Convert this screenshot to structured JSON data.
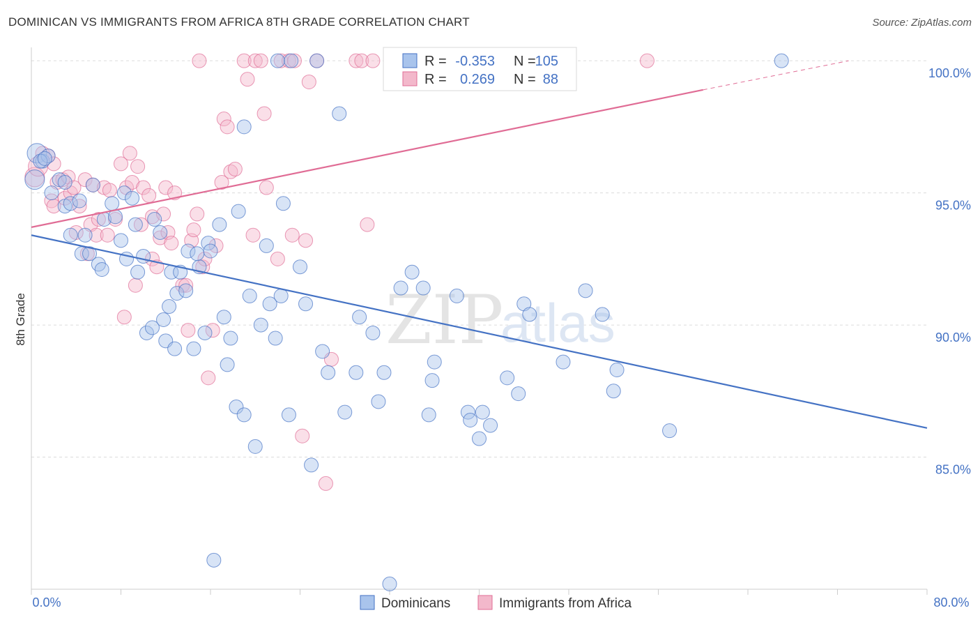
{
  "header": {
    "title": "DOMINICAN VS IMMIGRANTS FROM AFRICA 8TH GRADE CORRELATION CHART",
    "source": "Source: ZipAtlas.com"
  },
  "watermark": {
    "zip": "ZIP",
    "atlas": "atlas"
  },
  "stats_legend": {
    "rows": [
      {
        "r_label": "R =",
        "r_value": "-0.353",
        "n_label": "N =",
        "n_value": "105",
        "color": "#4472c4"
      },
      {
        "r_label": "R =",
        "r_value": "0.269",
        "n_label": "N =",
        "n_value": "88",
        "color": "#e06c95"
      }
    ]
  },
  "chart_data": {
    "type": "scatter",
    "title": "DOMINICAN VS IMMIGRANTS FROM AFRICA 8TH GRADE CORRELATION CHART",
    "xlabel": "",
    "ylabel": "8th Grade",
    "xlim": [
      0,
      80
    ],
    "ylim": [
      80.0,
      100.4
    ],
    "x_tick_labels": [
      "0.0%",
      "80.0%"
    ],
    "y_ticks": [
      85,
      90,
      95,
      100
    ],
    "y_tick_labels": [
      "85.0%",
      "90.0%",
      "95.0%",
      "100.0%"
    ],
    "grid": "horizontal dashed",
    "legend_position": "bottom-center",
    "series": [
      {
        "name": "Dominicans",
        "color": "#4472c4",
        "fill": "#a9c4ec",
        "r": -0.353,
        "n": 105,
        "trend": {
          "x0": 0,
          "y0": 93.4,
          "x1": 80,
          "y1": 86.1
        },
        "points": [
          [
            0.3,
            95.5
          ],
          [
            0.5,
            96.5
          ],
          [
            1.0,
            96.2
          ],
          [
            1.5,
            96.4
          ],
          [
            1.8,
            95.0
          ],
          [
            2.5,
            95.5
          ],
          [
            3.0,
            95.4
          ],
          [
            3.0,
            94.5
          ],
          [
            3.5,
            94.6
          ],
          [
            4.3,
            94.7
          ],
          [
            3.5,
            93.4
          ],
          [
            4.8,
            93.4
          ],
          [
            4.5,
            92.7
          ],
          [
            5.2,
            92.7
          ],
          [
            6.0,
            92.3
          ],
          [
            6.3,
            92.1
          ],
          [
            6.5,
            94.0
          ],
          [
            7.2,
            94.6
          ],
          [
            7.5,
            94.1
          ],
          [
            8.0,
            93.2
          ],
          [
            8.5,
            92.5
          ],
          [
            8.3,
            95.0
          ],
          [
            9.0,
            94.8
          ],
          [
            9.3,
            93.8
          ],
          [
            10.0,
            92.6
          ],
          [
            10.3,
            89.7
          ],
          [
            10.8,
            89.9
          ],
          [
            11.0,
            94.0
          ],
          [
            11.5,
            93.5
          ],
          [
            11.8,
            90.2
          ],
          [
            12.0,
            89.4
          ],
          [
            12.3,
            90.7
          ],
          [
            12.8,
            89.1
          ],
          [
            12.5,
            92.0
          ],
          [
            13.0,
            91.2
          ],
          [
            13.3,
            92.0
          ],
          [
            13.8,
            91.3
          ],
          [
            14.0,
            92.8
          ],
          [
            14.5,
            89.1
          ],
          [
            15.0,
            92.2
          ],
          [
            15.5,
            89.7
          ],
          [
            15.8,
            93.1
          ],
          [
            16.0,
            92.8
          ],
          [
            16.3,
            81.1
          ],
          [
            16.8,
            93.8
          ],
          [
            17.2,
            90.3
          ],
          [
            17.5,
            88.5
          ],
          [
            17.8,
            89.5
          ],
          [
            18.3,
            86.9
          ],
          [
            18.5,
            94.3
          ],
          [
            19.0,
            86.6
          ],
          [
            19.0,
            97.5
          ],
          [
            19.5,
            91.1
          ],
          [
            20.0,
            85.4
          ],
          [
            20.5,
            90.0
          ],
          [
            21.0,
            93.0
          ],
          [
            21.3,
            90.8
          ],
          [
            21.8,
            89.5
          ],
          [
            22.0,
            100.0
          ],
          [
            22.3,
            91.1
          ],
          [
            22.5,
            94.6
          ],
          [
            23.0,
            86.6
          ],
          [
            23.2,
            100.0
          ],
          [
            24.0,
            92.2
          ],
          [
            24.5,
            90.8
          ],
          [
            25.0,
            84.7
          ],
          [
            25.5,
            100.0
          ],
          [
            26.5,
            88.2
          ],
          [
            27.5,
            98.0
          ],
          [
            28.0,
            86.7
          ],
          [
            29.0,
            88.2
          ],
          [
            29.3,
            90.3
          ],
          [
            30.5,
            89.7
          ],
          [
            31.0,
            87.1
          ],
          [
            31.5,
            88.2
          ],
          [
            32.0,
            80.2
          ],
          [
            33.0,
            91.4
          ],
          [
            34.0,
            92.0
          ],
          [
            35.0,
            91.4
          ],
          [
            35.5,
            86.6
          ],
          [
            35.8,
            87.9
          ],
          [
            36.0,
            88.6
          ],
          [
            38.0,
            91.1
          ],
          [
            39.0,
            86.7
          ],
          [
            39.2,
            86.4
          ],
          [
            40.0,
            85.7
          ],
          [
            40.3,
            86.7
          ],
          [
            41.0,
            86.2
          ],
          [
            42.5,
            88.0
          ],
          [
            43.5,
            87.4
          ],
          [
            44.0,
            90.8
          ],
          [
            44.5,
            90.4
          ],
          [
            47.5,
            88.6
          ],
          [
            49.5,
            91.3
          ],
          [
            51.0,
            90.4
          ],
          [
            52.0,
            87.5
          ],
          [
            52.3,
            88.3
          ],
          [
            57.0,
            86.0
          ],
          [
            67.0,
            100.0
          ],
          [
            0.8,
            96.2
          ],
          [
            1.2,
            96.3
          ],
          [
            5.5,
            95.3
          ],
          [
            9.5,
            92.0
          ],
          [
            14.8,
            92.7
          ],
          [
            26.0,
            89.0
          ]
        ]
      },
      {
        "name": "Immigrants from Africa",
        "color": "#e06c95",
        "fill": "#f3b8cb",
        "r": 0.269,
        "n": 88,
        "trend": {
          "x0": 0,
          "y0": 93.7,
          "x1": 60,
          "y1": 98.9,
          "dash_to": {
            "x": 73,
            "y": 100.0
          }
        },
        "points": [
          [
            0.3,
            95.6
          ],
          [
            0.6,
            96.0
          ],
          [
            1.0,
            96.5
          ],
          [
            1.5,
            96.4
          ],
          [
            1.8,
            94.7
          ],
          [
            2.0,
            96.1
          ],
          [
            2.0,
            94.5
          ],
          [
            2.3,
            95.4
          ],
          [
            2.8,
            95.5
          ],
          [
            3.3,
            95.6
          ],
          [
            3.0,
            94.8
          ],
          [
            3.5,
            95.0
          ],
          [
            3.8,
            95.2
          ],
          [
            4.0,
            93.5
          ],
          [
            4.3,
            94.5
          ],
          [
            4.8,
            95.5
          ],
          [
            5.0,
            92.7
          ],
          [
            5.3,
            93.8
          ],
          [
            5.5,
            95.3
          ],
          [
            5.8,
            93.4
          ],
          [
            6.0,
            94.0
          ],
          [
            6.5,
            95.2
          ],
          [
            6.8,
            93.4
          ],
          [
            7.0,
            95.1
          ],
          [
            7.5,
            94.0
          ],
          [
            8.0,
            96.1
          ],
          [
            8.3,
            90.3
          ],
          [
            8.5,
            95.2
          ],
          [
            8.8,
            96.5
          ],
          [
            9.0,
            95.4
          ],
          [
            9.3,
            91.5
          ],
          [
            9.5,
            96.0
          ],
          [
            9.8,
            93.8
          ],
          [
            10.0,
            95.2
          ],
          [
            10.5,
            94.9
          ],
          [
            10.8,
            92.5
          ],
          [
            10.8,
            94.1
          ],
          [
            11.2,
            92.2
          ],
          [
            11.5,
            93.3
          ],
          [
            11.8,
            94.2
          ],
          [
            12.0,
            95.2
          ],
          [
            12.2,
            93.5
          ],
          [
            12.5,
            93.1
          ],
          [
            12.8,
            95.0
          ],
          [
            13.5,
            91.5
          ],
          [
            13.8,
            91.5
          ],
          [
            14.0,
            89.8
          ],
          [
            14.3,
            93.2
          ],
          [
            14.5,
            93.6
          ],
          [
            14.8,
            94.2
          ],
          [
            15.0,
            100.0
          ],
          [
            15.3,
            92.2
          ],
          [
            15.5,
            92.5
          ],
          [
            15.8,
            88.0
          ],
          [
            16.2,
            89.8
          ],
          [
            16.5,
            93.0
          ],
          [
            17.0,
            95.4
          ],
          [
            17.2,
            97.8
          ],
          [
            17.5,
            97.5
          ],
          [
            17.8,
            95.8
          ],
          [
            18.2,
            95.9
          ],
          [
            19.0,
            100.0
          ],
          [
            19.3,
            99.3
          ],
          [
            19.8,
            93.4
          ],
          [
            20.0,
            100.0
          ],
          [
            20.5,
            100.0
          ],
          [
            20.8,
            98.0
          ],
          [
            21.0,
            95.2
          ],
          [
            22.0,
            92.5
          ],
          [
            22.3,
            100.0
          ],
          [
            23.0,
            100.0
          ],
          [
            23.3,
            93.4
          ],
          [
            23.5,
            100.0
          ],
          [
            24.2,
            85.8
          ],
          [
            24.5,
            93.2
          ],
          [
            24.8,
            99.2
          ],
          [
            25.5,
            100.0
          ],
          [
            26.3,
            84.0
          ],
          [
            26.8,
            88.7
          ],
          [
            29.0,
            100.0
          ],
          [
            29.5,
            100.0
          ],
          [
            30.0,
            93.8
          ],
          [
            30.5,
            100.0
          ],
          [
            32.5,
            100.0
          ],
          [
            33.0,
            100.0
          ],
          [
            38.5,
            100.0
          ],
          [
            41.0,
            100.0
          ],
          [
            55.0,
            100.0
          ]
        ]
      }
    ]
  },
  "legend": {
    "items": [
      {
        "label": "Dominicans",
        "color": "#4472c4",
        "fill": "#a9c4ec"
      },
      {
        "label": "Immigrants from Africa",
        "color": "#e06c95",
        "fill": "#f3b8cb"
      }
    ]
  }
}
